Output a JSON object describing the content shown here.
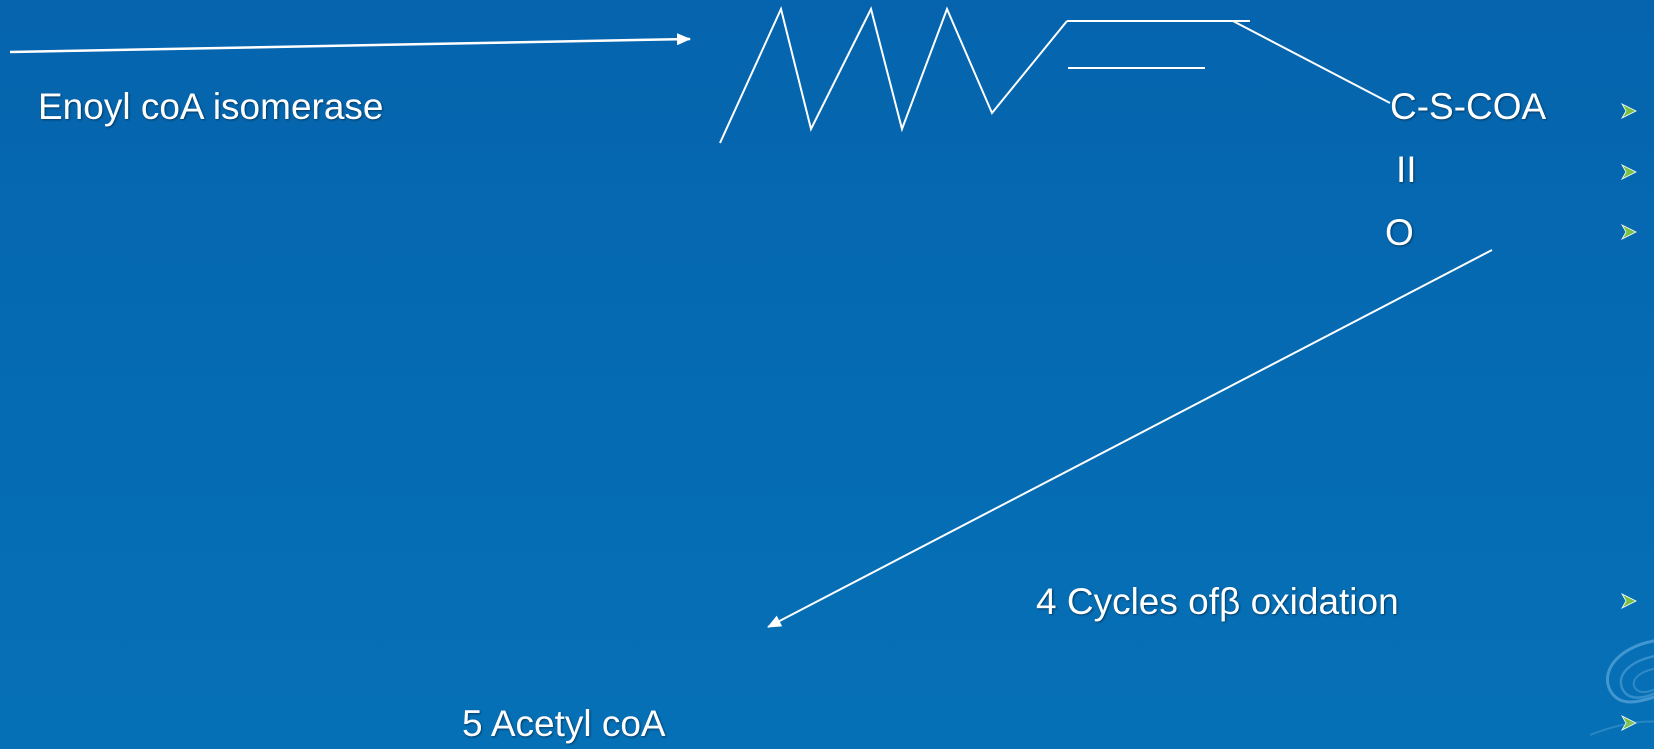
{
  "slide": {
    "enzyme_label": "Enoyl coA isomerase",
    "thioester_group": "C-S-COA",
    "double_bond_symbol": "II",
    "oxygen": "O",
    "cycles_label": "4 Cycles ofβ oxidation",
    "product_label": "5 Acetyl coA"
  },
  "colors": {
    "background": "#0468b0",
    "text": "#ffffff",
    "bullet": "#7ac143"
  },
  "icons": {
    "bullet": "green-arrowhead-bullet-icon",
    "decoration": "swirl-decoration-icon"
  }
}
